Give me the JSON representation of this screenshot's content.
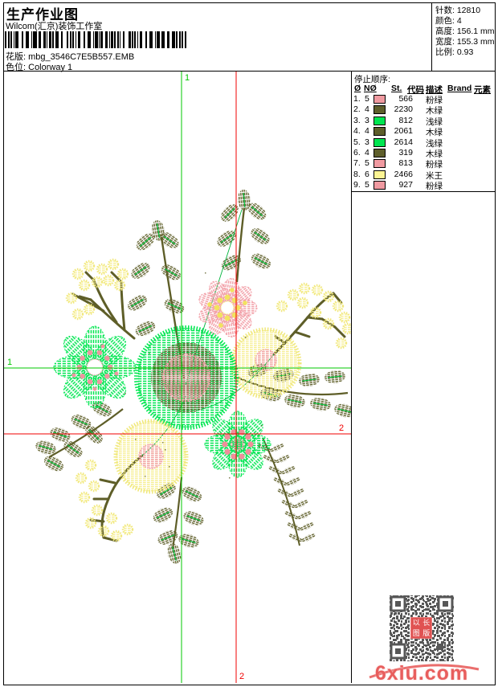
{
  "header": {
    "title": "生产作业图",
    "studio": "Wilcom(汇京)装饰工作室",
    "pattern_label": "花版:",
    "pattern_value": "mbg_3546C7E5B557.EMB",
    "colorway_label": "色位:",
    "colorway_value": "Colorway 1"
  },
  "info": {
    "stitches_label": "针数:",
    "stitches_value": "12810",
    "colors_label": "颜色:",
    "colors_value": "4",
    "height_label": "高度:",
    "height_value": "156.1 mm",
    "width_label": "宽度:",
    "width_value": "155.3 mm",
    "scale_label": "比例:",
    "scale_value": "0.93"
  },
  "stop_sequence": {
    "title": "停止顺序:",
    "columns": [
      "Ø",
      "NØ",
      "St.",
      "代码",
      "描述",
      "Brand",
      "元素"
    ],
    "rows": [
      {
        "idx": "1.",
        "needle": "5",
        "color": "#f09aa1",
        "st": "566",
        "desc": "粉绿"
      },
      {
        "idx": "2.",
        "needle": "4",
        "color": "#5e5e2b",
        "st": "2230",
        "desc": "木绿"
      },
      {
        "idx": "3.",
        "needle": "3",
        "color": "#00e651",
        "st": "812",
        "desc": "浅绿"
      },
      {
        "idx": "4.",
        "needle": "4",
        "color": "#5e5e2b",
        "st": "2061",
        "desc": "木绿"
      },
      {
        "idx": "5.",
        "needle": "3",
        "color": "#00e651",
        "st": "2614",
        "desc": "浅绿"
      },
      {
        "idx": "6.",
        "needle": "4",
        "color": "#5e5e2b",
        "st": "319",
        "desc": "木绿"
      },
      {
        "idx": "7.",
        "needle": "5",
        "color": "#f09aa1",
        "st": "813",
        "desc": "粉绿"
      },
      {
        "idx": "8.",
        "needle": "6",
        "color": "#fcf493",
        "st": "2466",
        "desc": "米王"
      },
      {
        "idx": "9.",
        "needle": "5",
        "color": "#f09aa1",
        "st": "927",
        "desc": "粉绿"
      }
    ]
  },
  "design": {
    "marker1": "1",
    "marker2": "2",
    "colors": {
      "bright_green": "#00e651",
      "olive": "#5e5e28",
      "pink": "#f2a0a8",
      "pale_yellow": "#f6ee8d",
      "stem_green": "#00cc44",
      "crosshair_green": "#00c800",
      "crosshair_red": "#f00000"
    }
  },
  "footer": {
    "watermark": "6xiu.com",
    "seal_chars": [
      "以",
      "长",
      "图",
      "版"
    ]
  }
}
